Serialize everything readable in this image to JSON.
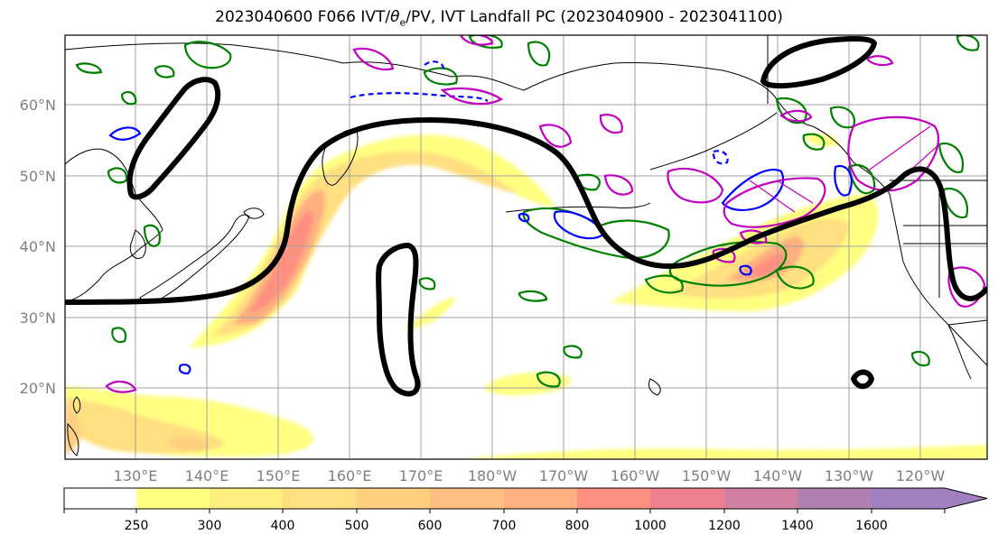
{
  "title_main": "2023040600 F066 IVT/",
  "title_theta": "θ",
  "title_sub": "e",
  "title_rest": "/PV, IVT Landfall PC (2023040900 - 2023041100)",
  "map": {
    "lat_labels": [
      "60°N",
      "50°N",
      "40°N",
      "30°N",
      "20°N"
    ],
    "lon_labels": [
      "130°E",
      "140°E",
      "150°E",
      "160°E",
      "170°E",
      "180°W",
      "170°W",
      "160°W",
      "150°W",
      "140°W",
      "130°W",
      "120°W"
    ],
    "colors": {
      "frame": "#000000",
      "grid": "#a0a0a0",
      "coast": "#000000",
      "ivt_contour": "#000000",
      "theta_e_pos": "#008000",
      "theta_e_neg": "#0000ff",
      "pv": "#c000c0"
    }
  },
  "colorbar": {
    "tick_labels": [
      "250",
      "300",
      "400",
      "500",
      "600",
      "700",
      "800",
      "1000",
      "1200",
      "1400",
      "1600"
    ],
    "bins": [
      {
        "from": "0",
        "to": "250",
        "color": "#ffffff"
      },
      {
        "from": "250",
        "to": "300",
        "color": "#ffff80"
      },
      {
        "from": "300",
        "to": "400",
        "color": "#ffef80"
      },
      {
        "from": "400",
        "to": "500",
        "color": "#ffdf80"
      },
      {
        "from": "500",
        "to": "600",
        "color": "#ffcf80"
      },
      {
        "from": "600",
        "to": "700",
        "color": "#ffbf80"
      },
      {
        "from": "700",
        "to": "800",
        "color": "#ffaf80"
      },
      {
        "from": "800",
        "to": "1000",
        "color": "#ff8f80"
      },
      {
        "from": "1000",
        "to": "1200",
        "color": "#ef8090"
      },
      {
        "from": "1200",
        "to": "1400",
        "color": "#d080a0"
      },
      {
        "from": "1400",
        "to": "1600",
        "color": "#b080b0"
      },
      {
        "from": "1600",
        "to": "",
        "color": "#a080c0"
      }
    ]
  }
}
